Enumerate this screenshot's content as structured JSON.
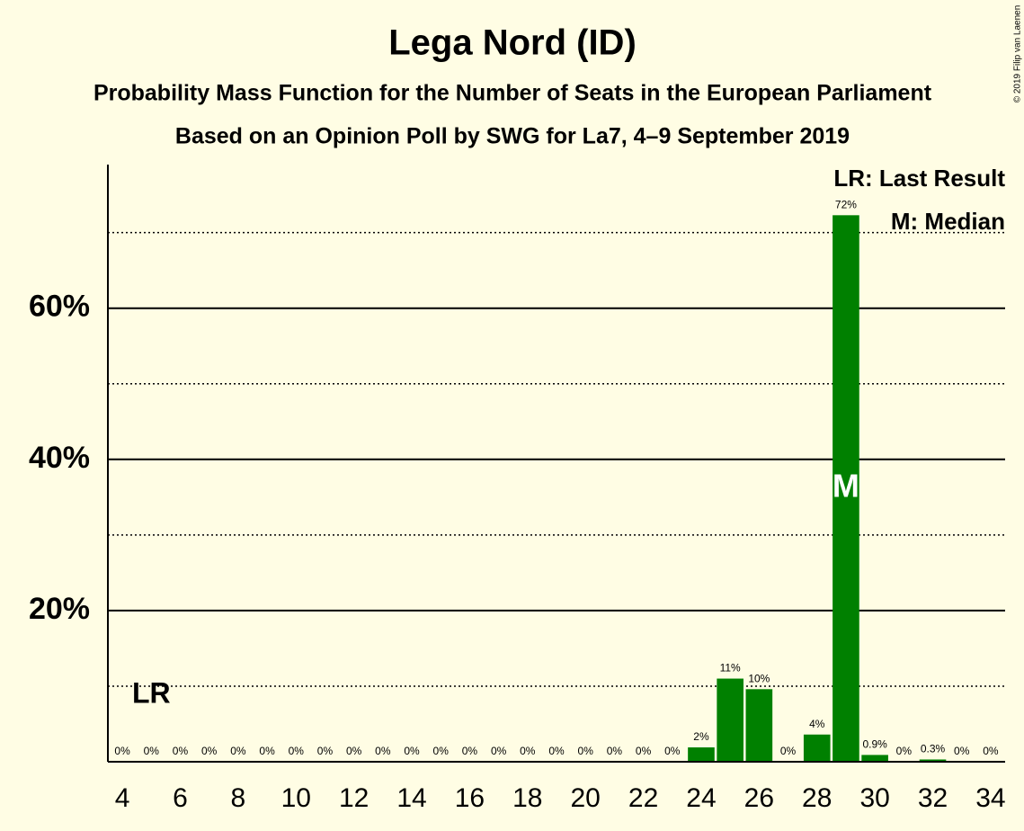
{
  "chart_data": {
    "type": "bar",
    "title": "Lega Nord (ID)",
    "subtitle": "Probability Mass Function for the Number of Seats in the European Parliament",
    "subtitle2": "Based on an Opinion Poll by SWG for La7, 4–9 September 2019",
    "copyright": "© 2019 Filip van Laenen",
    "x": [
      4,
      5,
      6,
      7,
      8,
      9,
      10,
      11,
      12,
      13,
      14,
      15,
      16,
      17,
      18,
      19,
      20,
      21,
      22,
      23,
      24,
      25,
      26,
      27,
      28,
      29,
      30,
      31,
      32,
      33,
      34
    ],
    "values": [
      0,
      0,
      0,
      0,
      0,
      0,
      0,
      0,
      0,
      0,
      0,
      0,
      0,
      0,
      0,
      0,
      0,
      0,
      0,
      0,
      1.9,
      11,
      9.6,
      0,
      3.6,
      72.3,
      0.9,
      0,
      0.3,
      0,
      0
    ],
    "value_labels": [
      "0%",
      "0%",
      "0%",
      "0%",
      "0%",
      "0%",
      "0%",
      "0%",
      "0%",
      "0%",
      "0%",
      "0%",
      "0%",
      "0%",
      "0%",
      "0%",
      "0%",
      "0%",
      "0%",
      "0%",
      "2%",
      "11%",
      "10%",
      "0%",
      "4%",
      "72%",
      "0.9%",
      "0%",
      "0.3%",
      "0%",
      "0%"
    ],
    "color": "#008000",
    "xlim": [
      3.5,
      34.5
    ],
    "xticks": [
      4,
      6,
      8,
      10,
      12,
      14,
      16,
      18,
      20,
      22,
      24,
      26,
      28,
      30,
      32,
      34
    ],
    "ylim": [
      0,
      79
    ],
    "yticks": [
      {
        "value": 20,
        "label": "20%"
      },
      {
        "value": 40,
        "label": "40%"
      },
      {
        "value": 60,
        "label": "60%"
      }
    ],
    "yminor": [
      10,
      30,
      50,
      70
    ],
    "grid": true,
    "annotations": [
      {
        "x": 5,
        "label": "LR"
      },
      {
        "x": 29,
        "label": "M"
      }
    ],
    "legend": [
      "LR: Last Result",
      "M: Median"
    ]
  }
}
